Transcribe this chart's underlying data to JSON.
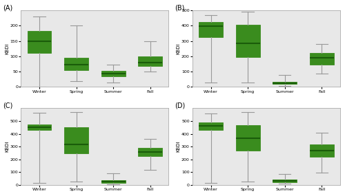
{
  "panels": [
    "A",
    "B",
    "C",
    "D"
  ],
  "seasons": [
    "Winter",
    "Spring",
    "Summer",
    "Fall"
  ],
  "ylabel": "KBDI",
  "box_color": "#3a8c1e",
  "whisker_color": "#999999",
  "median_color": "#1a5c0a",
  "background_color": "#e8e8e8",
  "boxes": {
    "A": {
      "Winter": {
        "whislo": 0,
        "q1": 110,
        "med": 150,
        "q3": 182,
        "whishi": 230
      },
      "Spring": {
        "whislo": 18,
        "q1": 55,
        "med": 72,
        "q3": 95,
        "whishi": 200
      },
      "Summer": {
        "whislo": 15,
        "q1": 35,
        "med": 43,
        "q3": 52,
        "whishi": 72
      },
      "Fall": {
        "whislo": 50,
        "q1": 68,
        "med": 80,
        "q3": 100,
        "whishi": 148
      }
    },
    "B": {
      "Winter": {
        "whislo": 28,
        "q1": 325,
        "med": 398,
        "q3": 425,
        "whishi": 468
      },
      "Spring": {
        "whislo": 28,
        "q1": 195,
        "med": 285,
        "q3": 405,
        "whishi": 490
      },
      "Summer": {
        "whislo": 8,
        "q1": 18,
        "med": 25,
        "q3": 32,
        "whishi": 78
      },
      "Fall": {
        "whislo": 88,
        "q1": 145,
        "med": 188,
        "q3": 222,
        "whishi": 278
      }
    },
    "C": {
      "Winter": {
        "whislo": 18,
        "q1": 428,
        "med": 452,
        "q3": 475,
        "whishi": 565
      },
      "Spring": {
        "whislo": 28,
        "q1": 245,
        "med": 318,
        "q3": 452,
        "whishi": 568
      },
      "Summer": {
        "whislo": 5,
        "q1": 18,
        "med": 28,
        "q3": 35,
        "whishi": 90
      },
      "Fall": {
        "whislo": 118,
        "q1": 228,
        "med": 258,
        "q3": 292,
        "whishi": 358
      }
    },
    "D": {
      "Winter": {
        "whislo": 18,
        "q1": 428,
        "med": 462,
        "q3": 488,
        "whishi": 558
      },
      "Spring": {
        "whislo": 28,
        "q1": 268,
        "med": 368,
        "q3": 468,
        "whishi": 568
      },
      "Summer": {
        "whislo": 12,
        "q1": 22,
        "med": 32,
        "q3": 42,
        "whishi": 88
      },
      "Fall": {
        "whislo": 98,
        "q1": 218,
        "med": 268,
        "q3": 318,
        "whishi": 408
      }
    }
  },
  "ylims": {
    "A": [
      0,
      250
    ],
    "B": [
      0,
      500
    ],
    "C": [
      0,
      600
    ],
    "D": [
      0,
      600
    ]
  },
  "yticks": {
    "A": [
      0,
      50,
      100,
      150,
      200
    ],
    "B": [
      0,
      100,
      200,
      300,
      400,
      500
    ],
    "C": [
      0,
      100,
      200,
      300,
      400,
      500
    ],
    "D": [
      0,
      100,
      200,
      300,
      400,
      500
    ]
  }
}
